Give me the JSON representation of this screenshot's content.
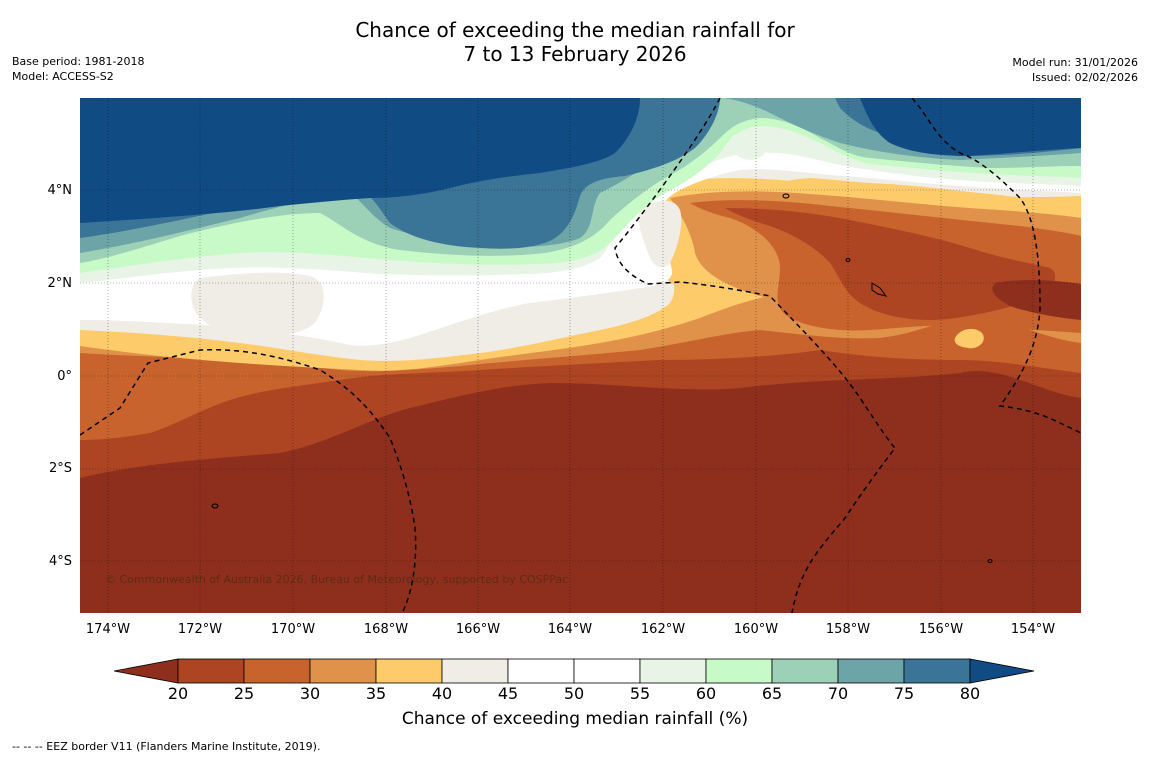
{
  "title": {
    "line1": "Chance of exceeding the median rainfall for",
    "line2": "7 to 13 February 2026"
  },
  "meta_left": {
    "base_period": "Base period: 1981-2018",
    "model": "Model: ACCESS-S2"
  },
  "meta_right": {
    "model_run": "Model run: 31/01/2026",
    "issued": "Issued: 02/02/2026"
  },
  "copyright": "© Commonwealth of Australia 2026, Bureau of Meteorology, supported by COSPPac",
  "axes": {
    "latitudes": [
      "4°N",
      "2°N",
      "0°",
      "2°S",
      "4°S"
    ],
    "longitudes": [
      "174°W",
      "172°W",
      "170°W",
      "168°W",
      "166°W",
      "164°W",
      "162°W",
      "160°W",
      "158°W",
      "156°W",
      "154°W"
    ]
  },
  "legend": {
    "ticks": [
      "20",
      "25",
      "30",
      "35",
      "40",
      "45",
      "50",
      "55",
      "60",
      "65",
      "70",
      "75",
      "80"
    ],
    "colors": [
      "#8e2f1d",
      "#ad4523",
      "#c8632e",
      "#e0914a",
      "#fecb6a",
      "#f0ece6",
      "#ffffff",
      "#ffffff",
      "#e8f5e6",
      "#c8fac8",
      "#9cd0b7",
      "#6ca4a8",
      "#3a7497",
      "#114b84"
    ],
    "label": "Chance of exceeding median rainfall (%)"
  },
  "footnote": "--  --  -- EEZ border V11 (Flanders Marine Institute, 2019)."
}
